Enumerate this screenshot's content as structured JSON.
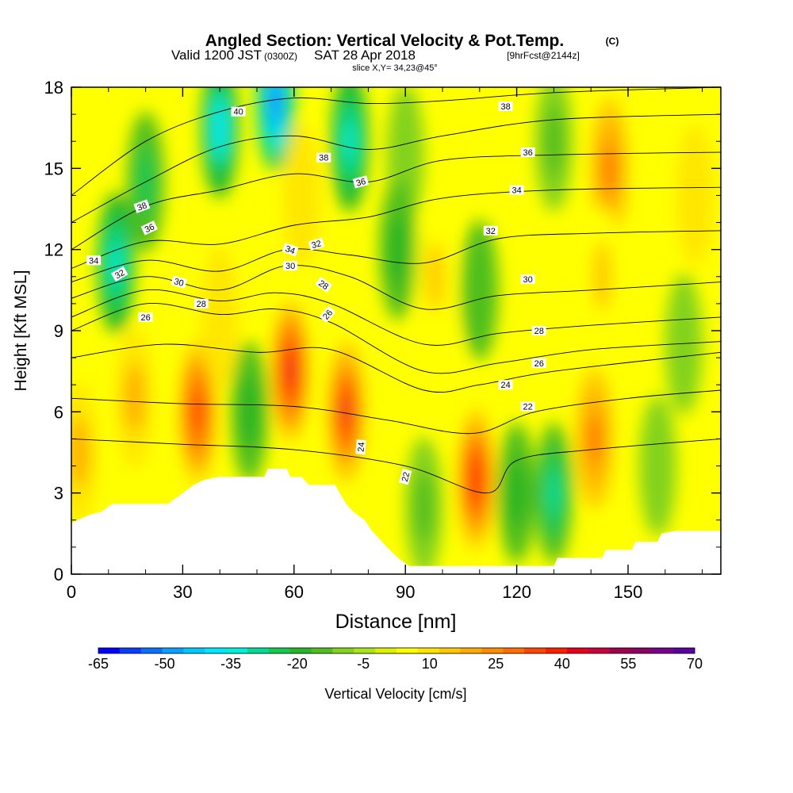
{
  "chart_data": {
    "type": "heatmap",
    "title": {
      "main": "Angled Section: Vertical Velocity & Pot.Temp.",
      "main_unit": "(C)",
      "valid_a": "Valid 1200 JST",
      "valid_b": "(0300Z)",
      "valid_c": "SAT 28 Apr 2018",
      "valid_d": "[9hrFcst@2144z]",
      "slice": "slice X,Y= 34,23@45°"
    },
    "xlabel": "Distance [nm]",
    "ylabel": "Height [Kft MSL]",
    "colorbar_label": "Vertical Velocity [cm/s]",
    "xlim": [
      0,
      175
    ],
    "ylim": [
      0,
      18
    ],
    "x_ticks": [
      0,
      30,
      60,
      90,
      120,
      150
    ],
    "y_ticks": [
      0,
      3,
      6,
      9,
      12,
      15,
      18
    ],
    "colorbar_levels": [
      -65,
      -60,
      -55,
      -50,
      -45,
      -40,
      -35,
      -30,
      -25,
      -20,
      -15,
      -10,
      -5,
      0,
      5,
      10,
      15,
      20,
      25,
      30,
      35,
      40,
      45,
      50,
      55,
      60,
      65,
      70
    ],
    "colorbar_tick_labels": [
      "-65",
      "-50",
      "-35",
      "-20",
      "-5",
      "10",
      "25",
      "40",
      "55",
      "70"
    ],
    "colorbar_colors": [
      "#0000ff",
      "#0a3cff",
      "#0a6eff",
      "#0aa0ff",
      "#00c8ff",
      "#00e6ff",
      "#00f0dc",
      "#00dc96",
      "#14c850",
      "#28b428",
      "#50be1e",
      "#82d21e",
      "#aae614",
      "#dcf000",
      "#ffff00",
      "#ffe600",
      "#ffc800",
      "#ffaa00",
      "#ff8c00",
      "#ff6e00",
      "#ff4600",
      "#ff1e00",
      "#e6001e",
      "#c8003c",
      "#a00050",
      "#8c0064",
      "#78008c",
      "#5a00a0"
    ],
    "terrain": [
      [
        0,
        1.9
      ],
      [
        5,
        2.2
      ],
      [
        8,
        2.3
      ],
      [
        11,
        2.6
      ],
      [
        20,
        2.6
      ],
      [
        26,
        2.6
      ],
      [
        30,
        3.0
      ],
      [
        33,
        3.3
      ],
      [
        36,
        3.5
      ],
      [
        40,
        3.6
      ],
      [
        52,
        3.6
      ],
      [
        53,
        3.9
      ],
      [
        58,
        3.9
      ],
      [
        59,
        3.6
      ],
      [
        62,
        3.6
      ],
      [
        64,
        3.3
      ],
      [
        71,
        3.3
      ],
      [
        74,
        2.6
      ],
      [
        76,
        2.3
      ],
      [
        79,
        2.0
      ],
      [
        81,
        1.6
      ],
      [
        85,
        1.0
      ],
      [
        88,
        0.6
      ],
      [
        91,
        0.3
      ],
      [
        130,
        0.3
      ],
      [
        131,
        0.6
      ],
      [
        143,
        0.6
      ],
      [
        144,
        0.9
      ],
      [
        151,
        0.9
      ],
      [
        152,
        1.2
      ],
      [
        158,
        1.2
      ],
      [
        159,
        1.5
      ],
      [
        163,
        1.6
      ],
      [
        175,
        1.6
      ]
    ],
    "vertical_velocity_features": [
      {
        "x": 34,
        "y": 6.0,
        "value": 42
      },
      {
        "x": 59,
        "y": 7.5,
        "value": 48
      },
      {
        "x": 74,
        "y": 6.0,
        "value": 45
      },
      {
        "x": 109,
        "y": 3.5,
        "value": 44
      },
      {
        "x": 141,
        "y": 5.0,
        "value": 30
      },
      {
        "x": 17,
        "y": 6.5,
        "value": 20
      },
      {
        "x": 2,
        "y": 4.5,
        "value": 20
      },
      {
        "x": 48,
        "y": 6.0,
        "value": -20
      },
      {
        "x": 95,
        "y": 2.5,
        "value": -15
      },
      {
        "x": 100,
        "y": 7.5,
        "value": 8
      },
      {
        "x": 120,
        "y": 3.0,
        "value": -20
      },
      {
        "x": 130,
        "y": 3.0,
        "value": -28
      },
      {
        "x": 165,
        "y": 8.5,
        "value": -10
      },
      {
        "x": 158,
        "y": 4.0,
        "value": -8
      },
      {
        "x": 12,
        "y": 11.5,
        "value": -35
      },
      {
        "x": 20,
        "y": 14.5,
        "value": -22
      },
      {
        "x": 40,
        "y": 16.5,
        "value": -38
      },
      {
        "x": 55,
        "y": 17.5,
        "value": -55
      },
      {
        "x": 62,
        "y": 14.0,
        "value": 10
      },
      {
        "x": 75,
        "y": 16.0,
        "value": -35
      },
      {
        "x": 90,
        "y": 15.5,
        "value": -10
      },
      {
        "x": 98,
        "y": 11.0,
        "value": 15
      },
      {
        "x": 110,
        "y": 10.5,
        "value": -12
      },
      {
        "x": 130,
        "y": 16.0,
        "value": -15
      },
      {
        "x": 145,
        "y": 15.0,
        "value": 30
      },
      {
        "x": 143,
        "y": 11.0,
        "value": 15
      },
      {
        "x": 168,
        "y": 14.0,
        "value": 12
      },
      {
        "x": 40,
        "y": 9.5,
        "value": 10
      },
      {
        "x": 88,
        "y": 12.0,
        "value": -20
      }
    ],
    "isentropes": [
      {
        "theta": 20,
        "points": [
          [
            0,
            5.0
          ],
          [
            30,
            4.8
          ],
          [
            60,
            4.6
          ],
          [
            90,
            4.0
          ],
          [
            112,
            3.0
          ],
          [
            120,
            4.2
          ],
          [
            140,
            4.6
          ],
          [
            175,
            5.0
          ]
        ]
      },
      {
        "theta": 22,
        "points": [
          [
            0,
            6.5
          ],
          [
            30,
            6.3
          ],
          [
            60,
            6.2
          ],
          [
            85,
            5.7
          ],
          [
            108,
            5.2
          ],
          [
            125,
            6.0
          ],
          [
            150,
            6.5
          ],
          [
            175,
            6.8
          ]
        ]
      },
      {
        "theta": 24,
        "points": [
          [
            0,
            8.0
          ],
          [
            25,
            8.5
          ],
          [
            50,
            8.2
          ],
          [
            70,
            8.3
          ],
          [
            95,
            6.8
          ],
          [
            110,
            7.0
          ],
          [
            130,
            7.5
          ],
          [
            175,
            8.2
          ]
        ]
      },
      {
        "theta": 26,
        "points": [
          [
            0,
            9.0
          ],
          [
            20,
            10.0
          ],
          [
            40,
            9.6
          ],
          [
            55,
            9.8
          ],
          [
            70,
            9.3
          ],
          [
            95,
            7.5
          ],
          [
            115,
            7.8
          ],
          [
            140,
            8.3
          ],
          [
            175,
            8.6
          ]
        ]
      },
      {
        "theta": 28,
        "points": [
          [
            0,
            9.5
          ],
          [
            20,
            10.5
          ],
          [
            40,
            10.1
          ],
          [
            55,
            10.4
          ],
          [
            70,
            10.0
          ],
          [
            95,
            8.5
          ],
          [
            115,
            8.9
          ],
          [
            140,
            9.2
          ],
          [
            175,
            9.5
          ]
        ]
      },
      {
        "theta": 30,
        "points": [
          [
            0,
            10.2
          ],
          [
            20,
            11.0
          ],
          [
            40,
            10.5
          ],
          [
            58,
            11.4
          ],
          [
            75,
            11.0
          ],
          [
            95,
            9.8
          ],
          [
            115,
            10.3
          ],
          [
            140,
            10.5
          ],
          [
            175,
            10.8
          ]
        ]
      },
      {
        "theta": 32,
        "points": [
          [
            0,
            10.8
          ],
          [
            20,
            11.6
          ],
          [
            40,
            11.2
          ],
          [
            58,
            12.0
          ],
          [
            75,
            11.8
          ],
          [
            95,
            11.5
          ],
          [
            115,
            12.4
          ],
          [
            140,
            12.6
          ],
          [
            175,
            12.7
          ]
        ]
      },
      {
        "theta": 34,
        "points": [
          [
            0,
            11.3
          ],
          [
            20,
            12.3
          ],
          [
            40,
            12.2
          ],
          [
            60,
            12.9
          ],
          [
            80,
            13.2
          ],
          [
            100,
            13.9
          ],
          [
            130,
            14.2
          ],
          [
            175,
            14.3
          ]
        ]
      },
      {
        "theta": 36,
        "points": [
          [
            0,
            12.0
          ],
          [
            20,
            13.6
          ],
          [
            40,
            14.2
          ],
          [
            60,
            14.8
          ],
          [
            80,
            14.5
          ],
          [
            100,
            15.3
          ],
          [
            130,
            15.5
          ],
          [
            175,
            15.6
          ]
        ]
      },
      {
        "theta": 38,
        "points": [
          [
            0,
            13.0
          ],
          [
            20,
            14.5
          ],
          [
            40,
            15.8
          ],
          [
            60,
            16.2
          ],
          [
            80,
            15.7
          ],
          [
            100,
            16.2
          ],
          [
            130,
            16.8
          ],
          [
            175,
            17.0
          ]
        ]
      },
      {
        "theta": 40,
        "points": [
          [
            0,
            14.0
          ],
          [
            20,
            16.0
          ],
          [
            40,
            17.1
          ],
          [
            60,
            17.6
          ],
          [
            80,
            17.4
          ],
          [
            100,
            17.5
          ],
          [
            130,
            17.8
          ],
          [
            175,
            18.0
          ]
        ]
      }
    ],
    "contour_labels": [
      {
        "text": "40",
        "x": 45,
        "y": 17.1,
        "angle": 0
      },
      {
        "text": "38",
        "x": 68,
        "y": 15.4,
        "angle": 0
      },
      {
        "text": "36",
        "x": 78,
        "y": 14.5,
        "angle": -15
      },
      {
        "text": "34",
        "x": 59,
        "y": 12.0,
        "angle": 20
      },
      {
        "text": "32",
        "x": 66,
        "y": 12.2,
        "angle": -15
      },
      {
        "text": "30",
        "x": 59,
        "y": 11.4,
        "angle": 0
      },
      {
        "text": "28",
        "x": 68,
        "y": 10.7,
        "angle": 35
      },
      {
        "text": "26",
        "x": 69,
        "y": 9.6,
        "angle": -50
      },
      {
        "text": "24",
        "x": 78,
        "y": 4.7,
        "angle": -85
      },
      {
        "text": "22",
        "x": 90,
        "y": 3.6,
        "angle": -75
      },
      {
        "text": "38",
        "x": 19,
        "y": 13.6,
        "angle": -20
      },
      {
        "text": "36",
        "x": 21,
        "y": 12.8,
        "angle": -25
      },
      {
        "text": "34",
        "x": 6,
        "y": 11.6,
        "angle": 0
      },
      {
        "text": "32",
        "x": 13,
        "y": 11.1,
        "angle": -30
      },
      {
        "text": "30",
        "x": 29,
        "y": 10.8,
        "angle": 15
      },
      {
        "text": "28",
        "x": 35,
        "y": 10.0,
        "angle": 0
      },
      {
        "text": "26",
        "x": 20,
        "y": 9.5,
        "angle": 0
      },
      {
        "text": "38",
        "x": 117,
        "y": 17.3,
        "angle": 0
      },
      {
        "text": "36",
        "x": 123,
        "y": 15.6,
        "angle": 0
      },
      {
        "text": "34",
        "x": 120,
        "y": 14.2,
        "angle": 0
      },
      {
        "text": "32",
        "x": 113,
        "y": 12.7,
        "angle": 0
      },
      {
        "text": "30",
        "x": 123,
        "y": 10.9,
        "angle": 0
      },
      {
        "text": "28",
        "x": 126,
        "y": 9.0,
        "angle": 0
      },
      {
        "text": "26",
        "x": 126,
        "y": 7.8,
        "angle": 0
      },
      {
        "text": "24",
        "x": 117,
        "y": 7.0,
        "angle": 0
      },
      {
        "text": "22",
        "x": 123,
        "y": 6.2,
        "angle": 0
      }
    ]
  }
}
